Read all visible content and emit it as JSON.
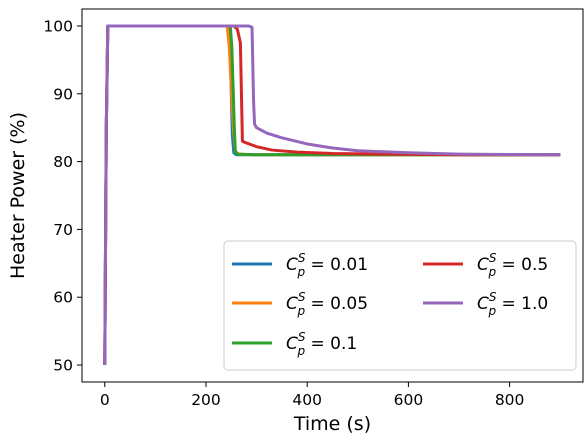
{
  "chart_data": {
    "type": "line",
    "xlabel": "Time (s)",
    "ylabel": "Heater Power (%)",
    "xlim": [
      -45,
      945
    ],
    "ylim": [
      47.5,
      102.5
    ],
    "xticks": [
      0,
      200,
      400,
      600,
      800
    ],
    "yticks": [
      50,
      60,
      70,
      80,
      90,
      100
    ],
    "grid": false,
    "legend": {
      "placement": "lower-right",
      "columns": 2
    },
    "series": [
      {
        "name": "C_p^S = 0.01",
        "label_sym": "C",
        "label_sub": "p",
        "label_sup": "S",
        "label_val": " = 0.01",
        "color": "#1f77b4",
        "x": [
          0,
          3,
          6,
          245,
          248,
          250,
          252,
          255,
          260,
          300,
          400,
          600,
          900
        ],
        "y": [
          50,
          85,
          100,
          100,
          96,
          90,
          84,
          81.3,
          81,
          81,
          81,
          81,
          81
        ]
      },
      {
        "name": "C_p^S = 0.05",
        "label_sym": "C",
        "label_sub": "p",
        "label_sup": "S",
        "label_val": " = 0.05",
        "color": "#ff7f0e",
        "x": [
          0,
          3,
          6,
          242,
          246,
          250,
          254,
          258,
          265,
          300,
          400,
          600,
          900
        ],
        "y": [
          50,
          85,
          100,
          100,
          97,
          91,
          85,
          81.5,
          81.1,
          81,
          81,
          81,
          81
        ]
      },
      {
        "name": "C_p^S = 0.1",
        "label_sym": "C",
        "label_sub": "p",
        "label_sup": "S",
        "label_val": " = 0.1",
        "color": "#2ca02c",
        "x": [
          0,
          3,
          6,
          248,
          251,
          254,
          256,
          258,
          262,
          300,
          400,
          600,
          900
        ],
        "y": [
          50,
          85,
          100,
          100,
          97,
          90,
          85,
          81.4,
          81.1,
          81,
          81,
          81,
          81
        ]
      },
      {
        "name": "C_p^S = 0.5",
        "label_sym": "C",
        "label_sub": "p",
        "label_sup": "S",
        "label_val": " = 0.5",
        "color": "#d62728",
        "x": [
          0,
          3,
          6,
          255,
          262,
          268,
          272,
          278,
          300,
          330,
          380,
          450,
          550,
          700,
          900
        ],
        "y": [
          50,
          85,
          100,
          100,
          99.5,
          97.5,
          83,
          82.8,
          82.2,
          81.7,
          81.4,
          81.2,
          81.1,
          81,
          81
        ]
      },
      {
        "name": "C_p^S = 1.0",
        "label_sym": "C",
        "label_sub": "p",
        "label_sup": "S",
        "label_val": " = 1.0",
        "color": "#9467bd",
        "x": [
          0,
          3,
          6,
          285,
          291,
          294,
          296,
          300,
          320,
          350,
          400,
          450,
          500,
          600,
          700,
          800,
          900
        ],
        "y": [
          50,
          85,
          100,
          100,
          99.8,
          89,
          85.5,
          85,
          84.2,
          83.5,
          82.6,
          82,
          81.6,
          81.3,
          81.1,
          81.05,
          81
        ]
      }
    ]
  }
}
